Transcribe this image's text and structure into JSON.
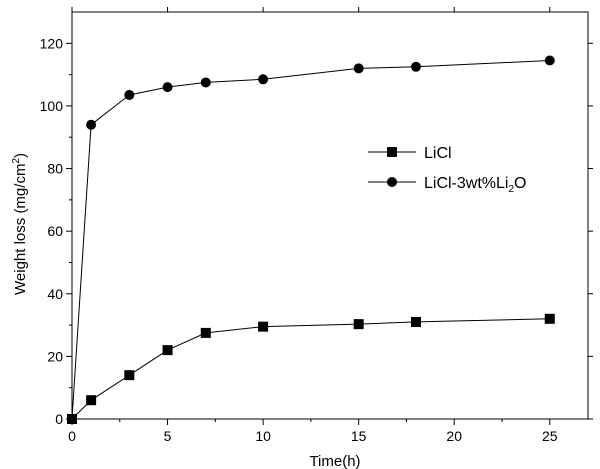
{
  "chart_data": {
    "type": "line",
    "xlabel": "Time(h)",
    "ylabel_parts": {
      "main": "Weight loss (mg/cm",
      "sup": "2",
      "end": ")"
    },
    "xlim": [
      0,
      27
    ],
    "ylim": [
      0,
      130
    ],
    "x_ticks": [
      0,
      5,
      10,
      15,
      20,
      25
    ],
    "y_ticks": [
      0,
      20,
      40,
      60,
      80,
      100,
      120
    ],
    "legend_position": "center-right",
    "series": [
      {
        "name": "LiCl",
        "marker": "square",
        "x": [
          0,
          1,
          3,
          5,
          7,
          10,
          15,
          18,
          25
        ],
        "y": [
          0,
          6,
          14,
          22,
          27.5,
          29.5,
          30.3,
          31,
          32
        ]
      },
      {
        "name": "LiCl-3wt%Li2O",
        "name_parts": {
          "pre": "LiCl-3wt%Li",
          "sub": "2",
          "post": "O"
        },
        "marker": "circle",
        "x": [
          0,
          1,
          3,
          5,
          7,
          10,
          15,
          18,
          25
        ],
        "y": [
          0,
          94,
          103.5,
          106,
          107.5,
          108.5,
          112,
          112.5,
          114.5
        ]
      }
    ]
  }
}
